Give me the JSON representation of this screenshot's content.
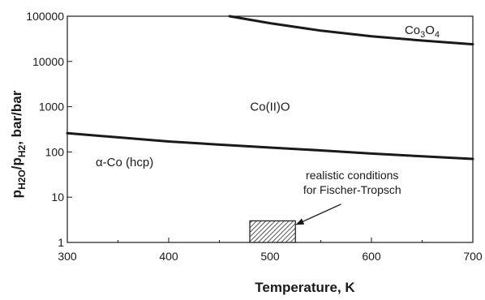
{
  "chart_data": {
    "type": "line",
    "xlabel": "Temperature, K",
    "ylabel_parts": {
      "p1": "p",
      "sub1": "H2O",
      "slash": "/",
      "p2": "p",
      "sub2": "H2",
      "unit": ", bar/bar"
    },
    "xlim": [
      300,
      700
    ],
    "ylim": [
      1,
      100000
    ],
    "y_scale": "log",
    "x_ticks": [
      300,
      400,
      500,
      600,
      700
    ],
    "x_tick_labels": [
      "300",
      "400",
      "500",
      "600",
      "700"
    ],
    "y_ticks": [
      1,
      10,
      100,
      1000,
      10000,
      100000
    ],
    "y_tick_labels": [
      "1",
      "10",
      "100",
      "1000",
      "10000",
      "100000"
    ],
    "grid": false,
    "series": [
      {
        "x": [
          300,
          350,
          400,
          450,
          500,
          550,
          600,
          650,
          700
        ],
        "y": [
          260,
          210,
          170,
          145,
          125,
          108,
          92,
          80,
          70
        ]
      },
      {
        "x": [
          460,
          500,
          550,
          600,
          650,
          700
        ],
        "y": [
          100000,
          70000,
          48000,
          36000,
          29000,
          24000
        ]
      }
    ],
    "region_labels": {
      "alpha_co": "α-Co (hcp)",
      "coo": "Co(II)O",
      "co3o4_base": "Co",
      "co3o4_sub1": "3",
      "co3o4_mid": "O",
      "co3o4_sub2": "4"
    },
    "region_label_positions": {
      "alpha_co": {
        "x": 328,
        "y": 60
      },
      "coo": {
        "x": 500,
        "y": 1000
      },
      "co3o4": {
        "x": 650,
        "y": 50000
      }
    },
    "box": {
      "x": [
        480,
        525
      ],
      "y": [
        1,
        3
      ]
    },
    "annotation": {
      "line1": "realistic conditions",
      "line2": "for Fischer-Tropsch",
      "anchor": {
        "x": 581,
        "y": 18
      },
      "arrow_from": {
        "x": 570,
        "y": 7
      },
      "arrow_to": {
        "x": 526,
        "y": 2.5
      }
    }
  }
}
